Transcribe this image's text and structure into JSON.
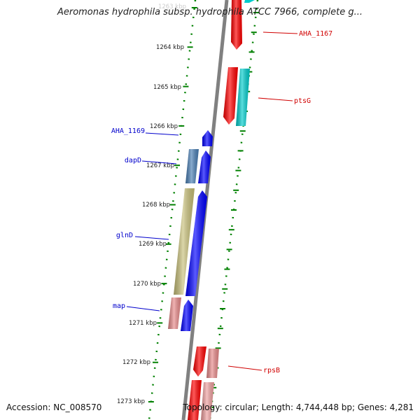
{
  "title": "Aeromonas hydrophila subsp. hydrophila ATCC 7966, complete g...",
  "footer": {
    "accession": "Accession: NC_008570",
    "info": "Topology: circular; Length: 4,744,448 bp; Genes: 4,281"
  },
  "colors": {
    "backbone": "#808080",
    "tick": "#008000",
    "label_left": "#0000cc",
    "label_right": "#d00000",
    "scale_text": "#222222"
  },
  "scale_labels": [
    "1263 kbp",
    "1264 kbp",
    "1265 kbp",
    "1266 kbp",
    "1267 kbp",
    "1268 kbp",
    "1269 kbp",
    "1270 kbp",
    "1271 kbp",
    "1272 kbp",
    "1273 kbp"
  ],
  "gene_labels": {
    "left": [
      "AHA_1169",
      "dapD",
      "glnD",
      "map"
    ],
    "right": [
      "AHA_1167",
      "ptsG",
      "rpsB"
    ]
  },
  "features": [
    {
      "kind": "red-arrow",
      "color": "#ff0000",
      "strand": "reverse"
    },
    {
      "kind": "cyan-arrow",
      "color": "#00cccc",
      "strand": "reverse"
    },
    {
      "kind": "red-arrow",
      "color": "#ff0000",
      "strand": "reverse"
    },
    {
      "kind": "cyan-bar",
      "color": "#00cccc",
      "strand": "reverse"
    },
    {
      "kind": "blue-arrow",
      "color": "#0000ff",
      "strand": "forward"
    },
    {
      "kind": "steelblue-bar",
      "color": "#4a7fb5",
      "strand": "forward"
    },
    {
      "kind": "blue-arrow",
      "color": "#0000ff",
      "strand": "forward"
    },
    {
      "kind": "khaki-bar",
      "color": "#c8c07a",
      "strand": "forward"
    },
    {
      "kind": "blue-arrow",
      "color": "#0000ff",
      "strand": "forward"
    },
    {
      "kind": "pink-bar",
      "color": "#e88a8a",
      "strand": "forward"
    },
    {
      "kind": "blue-arrow",
      "color": "#0000ff",
      "strand": "forward"
    },
    {
      "kind": "red-arrow",
      "color": "#ff0000",
      "strand": "reverse"
    },
    {
      "kind": "pink-bar",
      "color": "#e88a8a",
      "strand": "reverse"
    },
    {
      "kind": "red-arrow",
      "color": "#ff0000",
      "strand": "reverse"
    },
    {
      "kind": "pink-bar",
      "color": "#f0a0a0",
      "strand": "reverse"
    }
  ]
}
